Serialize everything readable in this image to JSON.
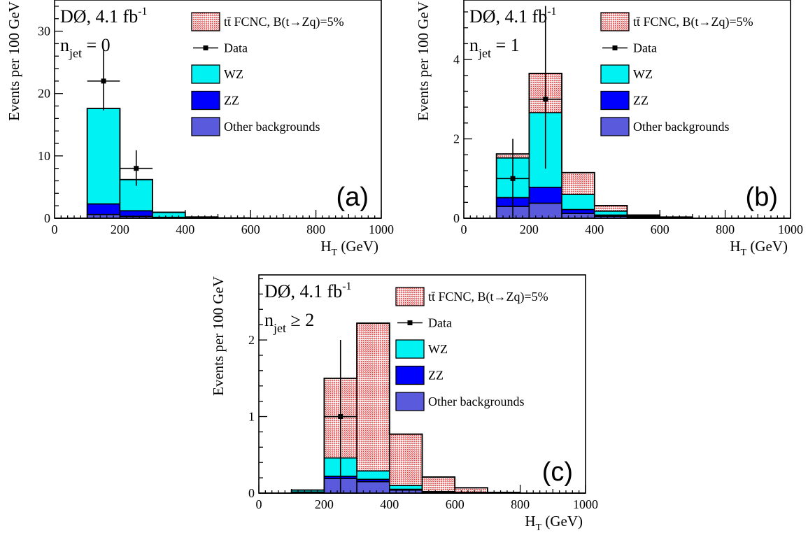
{
  "colors": {
    "signal_fill": "#e84040",
    "signal_bg": "#ffffff",
    "wz": "#00f2f2",
    "zz": "#0000ff",
    "other": "#5a5adc",
    "data": "#000000"
  },
  "legend": {
    "signal": "tt̄ FCNC, B(t→Zq)=5%",
    "data": "Data",
    "wz": "WZ",
    "zz": "ZZ",
    "other": "Other backgrounds"
  },
  "chart_data": [
    {
      "type": "bar",
      "panel": "(a)",
      "experiment": "DØ, 4.1 fb",
      "experiment_sup": "-1",
      "jet_var": "n",
      "jet_sub": "jet",
      "jet_cut": "= 0",
      "xlabel": "H",
      "xlabel_sub": "T",
      "xlabel_unit": "(GeV)",
      "ylabel": "Events per 100 GeV",
      "xlim": [
        0,
        1000
      ],
      "ylim": [
        0,
        35
      ],
      "xticks": [
        0,
        200,
        400,
        600,
        800,
        1000
      ],
      "yticks": [
        0,
        10,
        20,
        30
      ],
      "bin_edges": [
        0,
        100,
        200,
        300,
        400,
        500,
        600,
        700,
        800,
        900,
        1000
      ],
      "series": [
        {
          "name": "Other backgrounds",
          "key": "other",
          "values": [
            0,
            0.6,
            0.3,
            0.05,
            0.02,
            0,
            0,
            0,
            0,
            0
          ]
        },
        {
          "name": "ZZ",
          "key": "zz",
          "values": [
            0,
            1.7,
            0.9,
            0.1,
            0.03,
            0,
            0,
            0,
            0,
            0
          ]
        },
        {
          "name": "WZ",
          "key": "wz",
          "values": [
            0,
            15.3,
            5.0,
            0.8,
            0.15,
            0.05,
            0,
            0,
            0,
            0
          ]
        },
        {
          "name": "tt̄ FCNC, B(t→Zq)=5%",
          "key": "signal",
          "values": [
            0,
            0,
            0,
            0,
            0,
            0,
            0,
            0,
            0,
            0
          ]
        }
      ],
      "data_points": [
        {
          "x": 150,
          "y": 22,
          "err_lo": 4.7,
          "err_hi": 5.2
        },
        {
          "x": 250,
          "y": 8,
          "err_lo": 2.8,
          "err_hi": 2.9
        }
      ]
    },
    {
      "type": "bar",
      "panel": "(b)",
      "experiment": "DØ, 4.1 fb",
      "experiment_sup": "-1",
      "jet_var": "n",
      "jet_sub": "jet",
      "jet_cut": "= 1",
      "xlabel": "H",
      "xlabel_sub": "T",
      "xlabel_unit": "(GeV)",
      "ylabel": "Events per 100 GeV",
      "xlim": [
        0,
        1000
      ],
      "ylim": [
        0,
        5.5
      ],
      "xticks": [
        0,
        200,
        400,
        600,
        800,
        1000
      ],
      "yticks": [
        0,
        2,
        4
      ],
      "bin_edges": [
        0,
        100,
        200,
        300,
        400,
        500,
        600,
        700,
        800,
        900,
        1000
      ],
      "series": [
        {
          "name": "Other backgrounds",
          "key": "other",
          "values": [
            0,
            0.3,
            0.38,
            0.12,
            0.05,
            0.02,
            0.01,
            0,
            0,
            0
          ]
        },
        {
          "name": "ZZ",
          "key": "zz",
          "values": [
            0,
            0.22,
            0.4,
            0.1,
            0.03,
            0.01,
            0,
            0,
            0,
            0
          ]
        },
        {
          "name": "WZ",
          "key": "wz",
          "values": [
            0,
            1.0,
            1.88,
            0.38,
            0.1,
            0.02,
            0.01,
            0,
            0,
            0
          ]
        },
        {
          "name": "tt̄ FCNC, B(t→Zq)=5%",
          "key": "signal",
          "values": [
            0,
            0.1,
            0.99,
            0.55,
            0.14,
            0.03,
            0.01,
            0,
            0,
            0
          ]
        }
      ],
      "data_points": [
        {
          "x": 150,
          "y": 1,
          "err_lo": 1.0,
          "err_hi": 1.0
        },
        {
          "x": 250,
          "y": 3,
          "err_lo": 1.75,
          "err_hi": 2.35
        }
      ]
    },
    {
      "type": "bar",
      "panel": "(c)",
      "experiment": "DØ, 4.1 fb",
      "experiment_sup": "-1",
      "jet_var": "n",
      "jet_sub": "jet",
      "jet_cut": "≥ 2",
      "xlabel": "H",
      "xlabel_sub": "T",
      "xlabel_unit": "(GeV)",
      "ylabel": "Events per 100 GeV",
      "xlim": [
        0,
        1000
      ],
      "ylim": [
        0,
        2.85
      ],
      "xticks": [
        0,
        200,
        400,
        600,
        800,
        1000
      ],
      "yticks": [
        0,
        1,
        2
      ],
      "bin_edges": [
        0,
        100,
        200,
        300,
        400,
        500,
        600,
        700,
        800,
        900,
        1000
      ],
      "series": [
        {
          "name": "Other backgrounds",
          "key": "other",
          "values": [
            0,
            0.01,
            0.19,
            0.15,
            0.04,
            0.01,
            0.005,
            0,
            0,
            0
          ]
        },
        {
          "name": "ZZ",
          "key": "zz",
          "values": [
            0,
            0.005,
            0.03,
            0.03,
            0.01,
            0.003,
            0,
            0,
            0,
            0
          ]
        },
        {
          "name": "WZ",
          "key": "wz",
          "values": [
            0,
            0.025,
            0.24,
            0.11,
            0.05,
            0.007,
            0.005,
            0,
            0,
            0
          ]
        },
        {
          "name": "tt̄ FCNC, B(t→Zq)=5%",
          "key": "signal",
          "values": [
            0,
            0,
            1.04,
            1.93,
            0.67,
            0.19,
            0.06,
            0.01,
            0,
            0
          ]
        }
      ],
      "data_points": [
        {
          "x": 250,
          "y": 1,
          "err_lo": 1.0,
          "err_hi": 1.0
        }
      ]
    }
  ]
}
